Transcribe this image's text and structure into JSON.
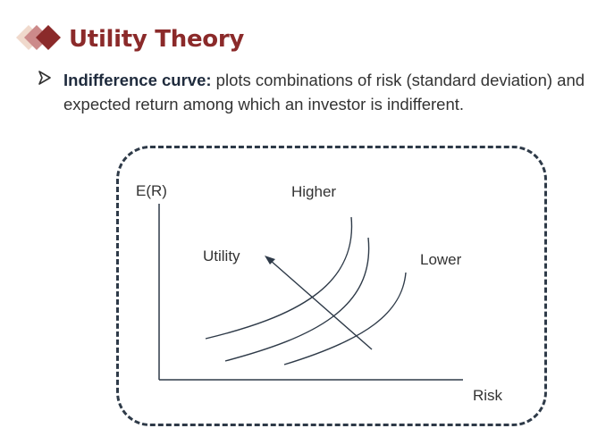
{
  "slide": {
    "title": "Utility Theory",
    "logo_colors": [
      "#f0d9cc",
      "#cc8a8a",
      "#8b2a2a"
    ],
    "bullet": {
      "term": "Indifference curve:",
      "text": " plots combinations of risk (standard deviation) and expected return among which an investor is indifferent."
    }
  },
  "diagram": {
    "y_axis_label": "E(R)",
    "x_axis_label": "Risk",
    "higher_label": "Higher",
    "utility_label": "Utility",
    "lower_label": "Lower",
    "curve_count": 3,
    "arrow_direction": "toward upper-left (higher utility)"
  }
}
